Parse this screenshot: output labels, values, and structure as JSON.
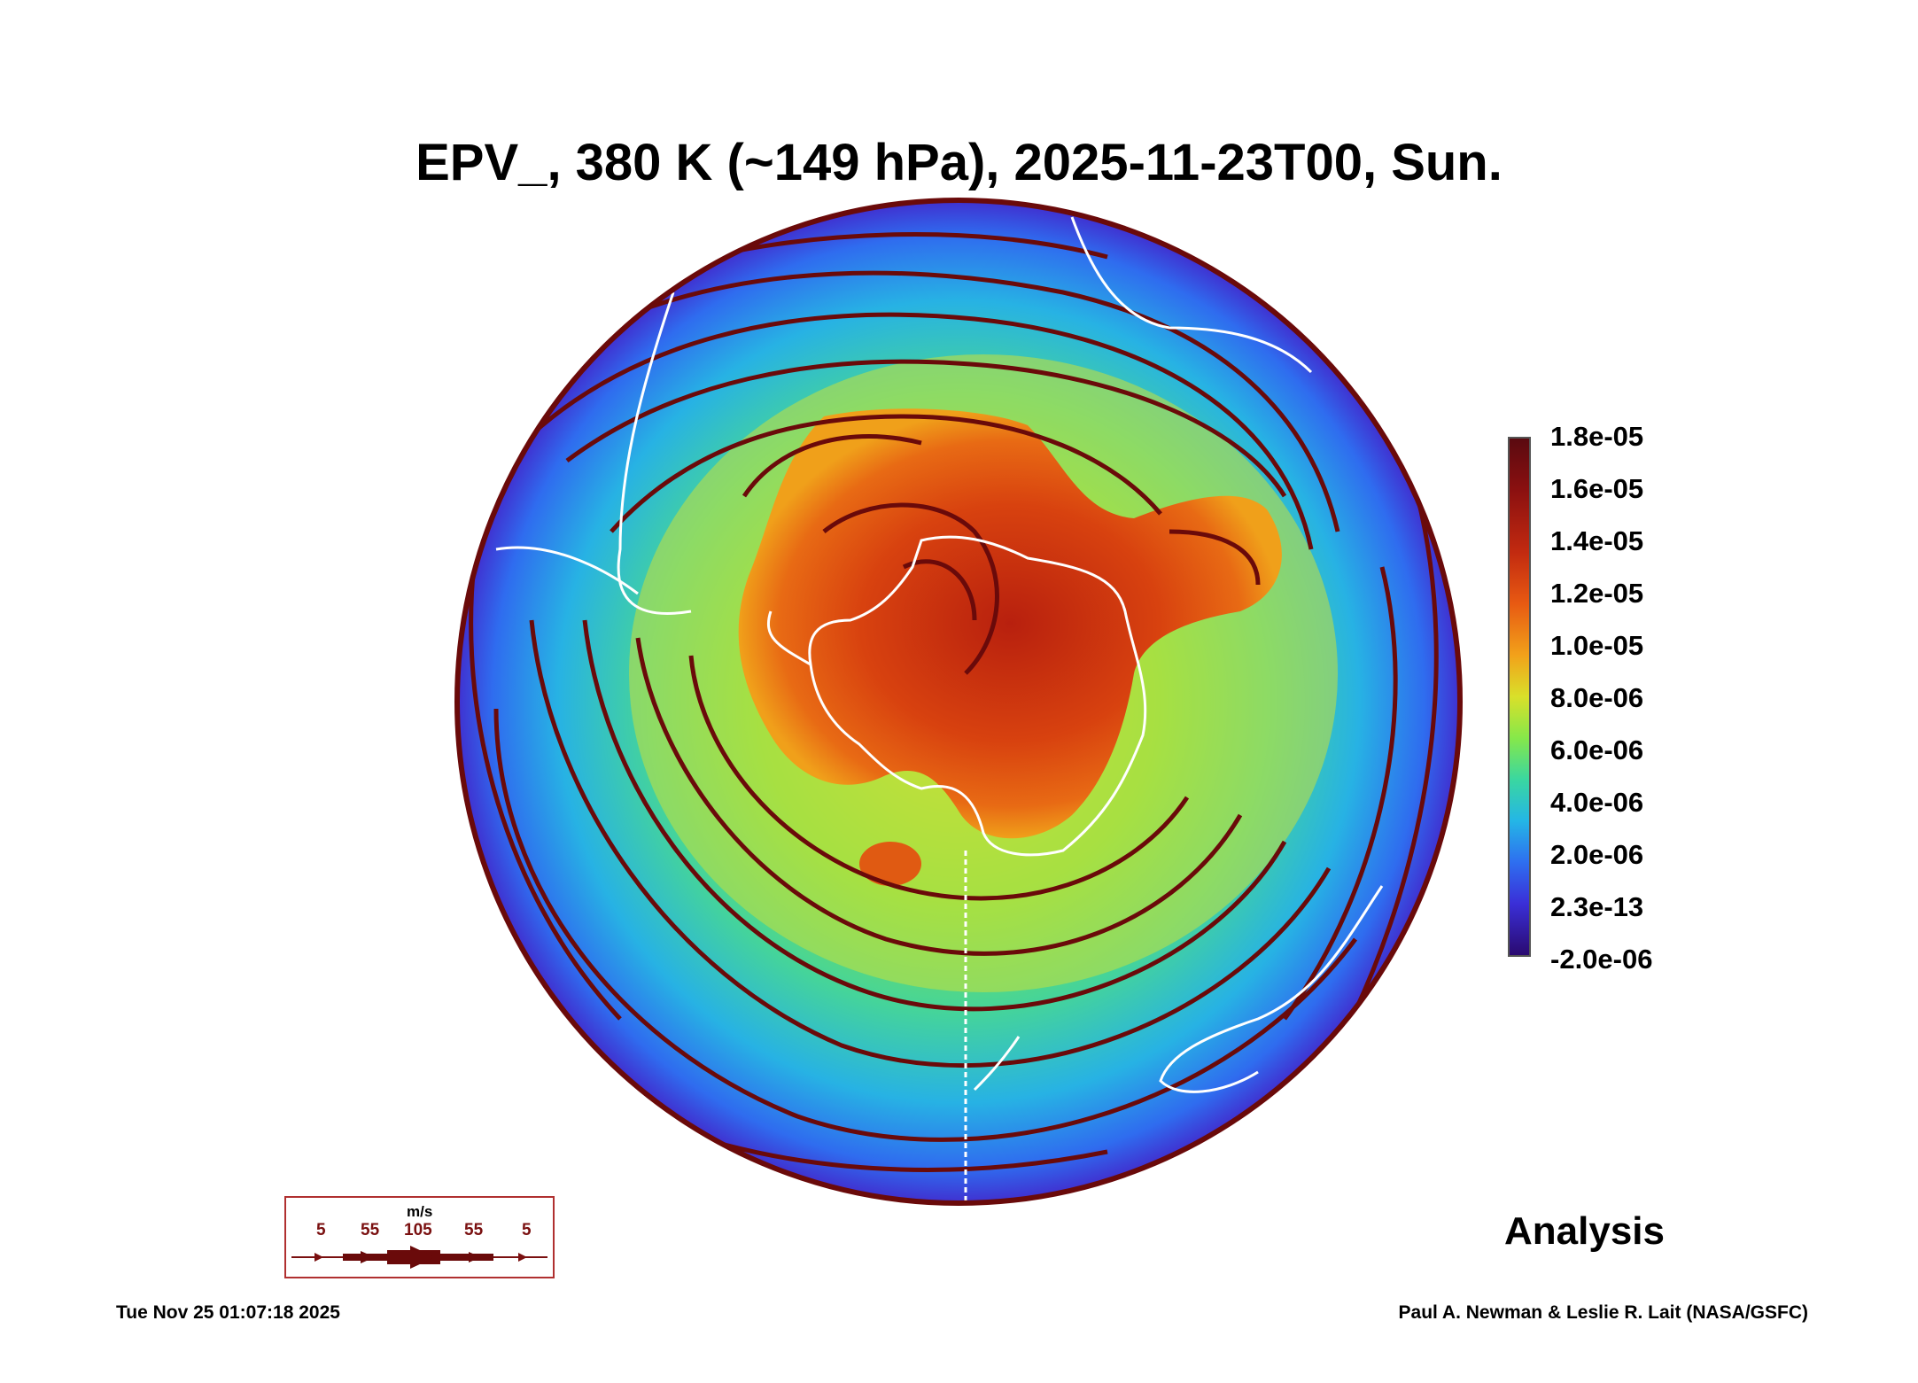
{
  "title": "EPV_, 380 K (~149 hPa), 2025-11-23T00, Sun.",
  "colorbar": {
    "labels": [
      "1.8e-05",
      "1.6e-05",
      "1.4e-05",
      "1.2e-05",
      "1.0e-05",
      "8.0e-06",
      "6.0e-06",
      "4.0e-06",
      "2.0e-06",
      "2.3e-13",
      "-2.0e-06"
    ],
    "colors": [
      "#5a0a10",
      "#8b1010",
      "#c22a10",
      "#e85a12",
      "#f2a21a",
      "#d9e02a",
      "#86e84a",
      "#3ad7a0",
      "#24b6e6",
      "#2e6ff0",
      "#3a2fd8",
      "#2a0a70"
    ]
  },
  "map": {
    "projection": "south polar orthographic",
    "field": "EPV_",
    "streamline_color": "#6a0a0a",
    "coastline_color": "#ffffff"
  },
  "wind_legend": {
    "unit": "m/s",
    "values": [
      "5",
      "55",
      "105",
      "55",
      "5"
    ]
  },
  "label": "Analysis",
  "footer": {
    "timestamp": "Tue Nov 25 01:07:18 2025",
    "credit": "Paul A. Newman & Leslie R. Lait (NASA/GSFC)"
  }
}
